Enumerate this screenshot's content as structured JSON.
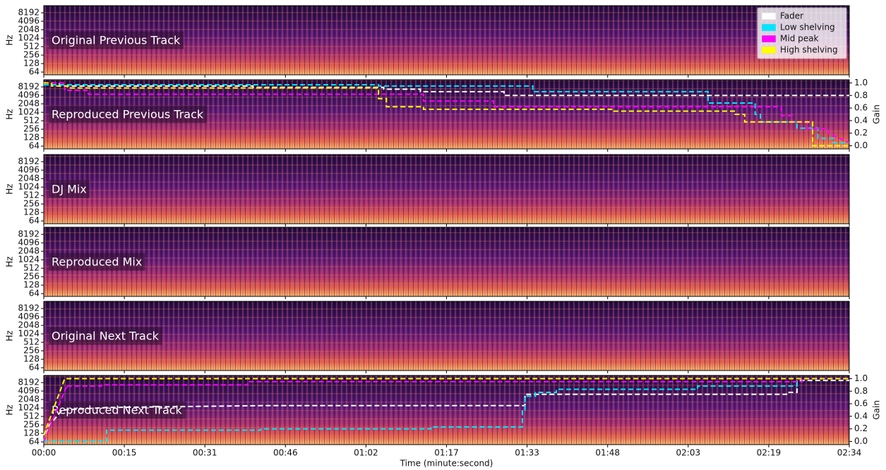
{
  "chart_data": [
    {
      "type": "spectrogram",
      "label": "Original Previous Track",
      "ylabel": "Hz",
      "log_y": true,
      "ylim": [
        51,
        14700
      ],
      "yticks": [
        64,
        128,
        256,
        512,
        1024,
        2048,
        4096,
        8192
      ],
      "legend": "upper right"
    },
    {
      "type": "spectrogram",
      "label": "Reproduced Previous Track",
      "ylabel": "Hz",
      "log_y": true,
      "ylim": [
        51,
        14700
      ],
      "yticks": [
        64,
        128,
        256,
        512,
        1024,
        2048,
        4096,
        8192
      ],
      "y2label": "Gain",
      "y2lim": [
        -0.05,
        1.05
      ],
      "y2ticks": [
        {
          "value": 0,
          "label": "0.0"
        },
        {
          "value": 0.2,
          "label": "0.2"
        },
        {
          "value": 0.4,
          "label": "0.4"
        },
        {
          "value": 0.6,
          "label": "0.6"
        },
        {
          "value": 0.8,
          "label": "0.8"
        },
        {
          "value": 1,
          "label": "1.0"
        }
      ],
      "series": [
        {
          "name": "Fader",
          "color": "#ffffff",
          "axis": "y2",
          "x": [
            0,
            3,
            3,
            40,
            40,
            65,
            65,
            72,
            72,
            88,
            88,
            154
          ],
          "values": [
            1.0,
            1.0,
            0.95,
            0.95,
            0.93,
            0.93,
            0.9,
            0.9,
            0.86,
            0.86,
            0.8,
            0.8
          ]
        },
        {
          "name": "Low shelving",
          "color": "#00e5ff",
          "axis": "y2",
          "x": [
            0,
            64,
            64,
            93.5,
            93.5,
            127,
            127,
            136,
            136,
            137,
            137,
            144,
            144,
            148,
            148,
            151,
            151,
            154
          ],
          "values": [
            0.97,
            0.97,
            0.95,
            0.95,
            0.86,
            0.86,
            0.68,
            0.68,
            0.5,
            0.5,
            0.38,
            0.38,
            0.28,
            0.28,
            0.12,
            0.12,
            0.05,
            0.05
          ]
        },
        {
          "name": "Mid peak",
          "color": "#ff00ff",
          "axis": "y2",
          "x": [
            0,
            4,
            4,
            8.5,
            8.5,
            72.6,
            72.6,
            86,
            86,
            141,
            141,
            143,
            143,
            146,
            146,
            150,
            150,
            154
          ],
          "values": [
            1.0,
            1.0,
            0.88,
            0.88,
            0.82,
            0.82,
            0.71,
            0.71,
            0.62,
            0.62,
            0.48,
            0.48,
            0.38,
            0.38,
            0.27,
            0.27,
            0.2,
            0.05
          ]
        },
        {
          "name": "High shelving",
          "color": "#ffff00",
          "axis": "y2",
          "x": [
            0,
            1.5,
            1.5,
            4.5,
            4.5,
            64,
            64,
            65.5,
            65.5,
            72.6,
            72.6,
            109,
            109,
            132,
            132,
            134,
            134,
            147,
            147,
            154
          ],
          "values": [
            1.0,
            1.0,
            0.95,
            0.95,
            0.92,
            0.92,
            0.75,
            0.75,
            0.62,
            0.62,
            0.58,
            0.58,
            0.55,
            0.55,
            0.5,
            0.5,
            0.38,
            0.38,
            0,
            0
          ]
        }
      ]
    },
    {
      "type": "spectrogram",
      "label": "DJ Mix",
      "ylabel": "Hz",
      "log_y": true,
      "ylim": [
        51,
        14700
      ],
      "yticks": [
        64,
        128,
        256,
        512,
        1024,
        2048,
        4096,
        8192
      ]
    },
    {
      "type": "spectrogram",
      "label": "Reproduced Mix",
      "ylabel": "Hz",
      "log_y": true,
      "ylim": [
        51,
        14700
      ],
      "yticks": [
        64,
        128,
        256,
        512,
        1024,
        2048,
        4096,
        8192
      ]
    },
    {
      "type": "spectrogram",
      "label": "Original Next Track",
      "ylabel": "Hz",
      "log_y": true,
      "ylim": [
        51,
        14700
      ],
      "yticks": [
        64,
        128,
        256,
        512,
        1024,
        2048,
        4096,
        8192
      ]
    },
    {
      "type": "spectrogram",
      "label": "Reproduced Next Track",
      "ylabel": "Hz",
      "log_y": true,
      "ylim": [
        51,
        14700
      ],
      "yticks": [
        64,
        128,
        256,
        512,
        1024,
        2048,
        4096,
        8192
      ],
      "y2label": "Gain",
      "y2lim": [
        -0.05,
        1.05
      ],
      "y2ticks": [
        {
          "value": 0,
          "label": "0.0"
        },
        {
          "value": 0.2,
          "label": "0.2"
        },
        {
          "value": 0.4,
          "label": "0.4"
        },
        {
          "value": 0.6,
          "label": "0.6"
        },
        {
          "value": 0.8,
          "label": "0.8"
        },
        {
          "value": 1,
          "label": "1.0"
        }
      ],
      "series": [
        {
          "name": "Fader",
          "color": "#ffffff",
          "axis": "y2",
          "x": [
            0,
            1,
            1,
            3.5,
            3.5,
            12,
            12,
            41.5,
            41.5,
            92,
            92,
            142,
            142,
            144,
            144,
            154
          ],
          "values": [
            0,
            0.25,
            0.25,
            0.5,
            0.5,
            0.54,
            0.54,
            0.57,
            0.57,
            0.57,
            0.75,
            0.75,
            0.78,
            0.78,
            0.97,
            0.97
          ]
        },
        {
          "name": "Low shelving",
          "color": "#00e5ff",
          "axis": "y2",
          "x": [
            0,
            12,
            12,
            41.5,
            41.5,
            74,
            74,
            91.5,
            91.5,
            92,
            92,
            94,
            94,
            98,
            98,
            125,
            125,
            144,
            144,
            154
          ],
          "values": [
            0,
            0,
            0.18,
            0.18,
            0.2,
            0.2,
            0.23,
            0.23,
            0.5,
            0.5,
            0.72,
            0.72,
            0.78,
            0.78,
            0.83,
            0.83,
            0.88,
            0.88,
            1.0,
            1.0
          ]
        },
        {
          "name": "Mid peak",
          "color": "#ff00ff",
          "axis": "y2",
          "x": [
            0,
            4.5,
            4.5,
            11,
            11,
            39,
            39,
            145,
            145,
            154
          ],
          "values": [
            0,
            0.9,
            0.88,
            0.88,
            0.9,
            0.9,
            0.95,
            0.95,
            1.0,
            1.0
          ]
        },
        {
          "name": "High shelving",
          "color": "#ffff00",
          "axis": "y2",
          "x": [
            0,
            4,
            154
          ],
          "values": [
            0.1,
            1.0,
            1.0
          ]
        }
      ],
      "xlabel": "Time (minute:second)",
      "xlim": [
        0,
        154
      ],
      "xticks": [
        {
          "value": 0,
          "label": "00:00"
        },
        {
          "value": 15.4,
          "label": "00:15"
        },
        {
          "value": 30.8,
          "label": "00:31"
        },
        {
          "value": 46.2,
          "label": "00:46"
        },
        {
          "value": 61.6,
          "label": "01:02"
        },
        {
          "value": 77,
          "label": "01:17"
        },
        {
          "value": 92.4,
          "label": "01:33"
        },
        {
          "value": 107.8,
          "label": "01:48"
        },
        {
          "value": 123.2,
          "label": "02:03"
        },
        {
          "value": 138.6,
          "label": "02:19"
        },
        {
          "value": 154,
          "label": "02:34"
        }
      ]
    }
  ]
}
